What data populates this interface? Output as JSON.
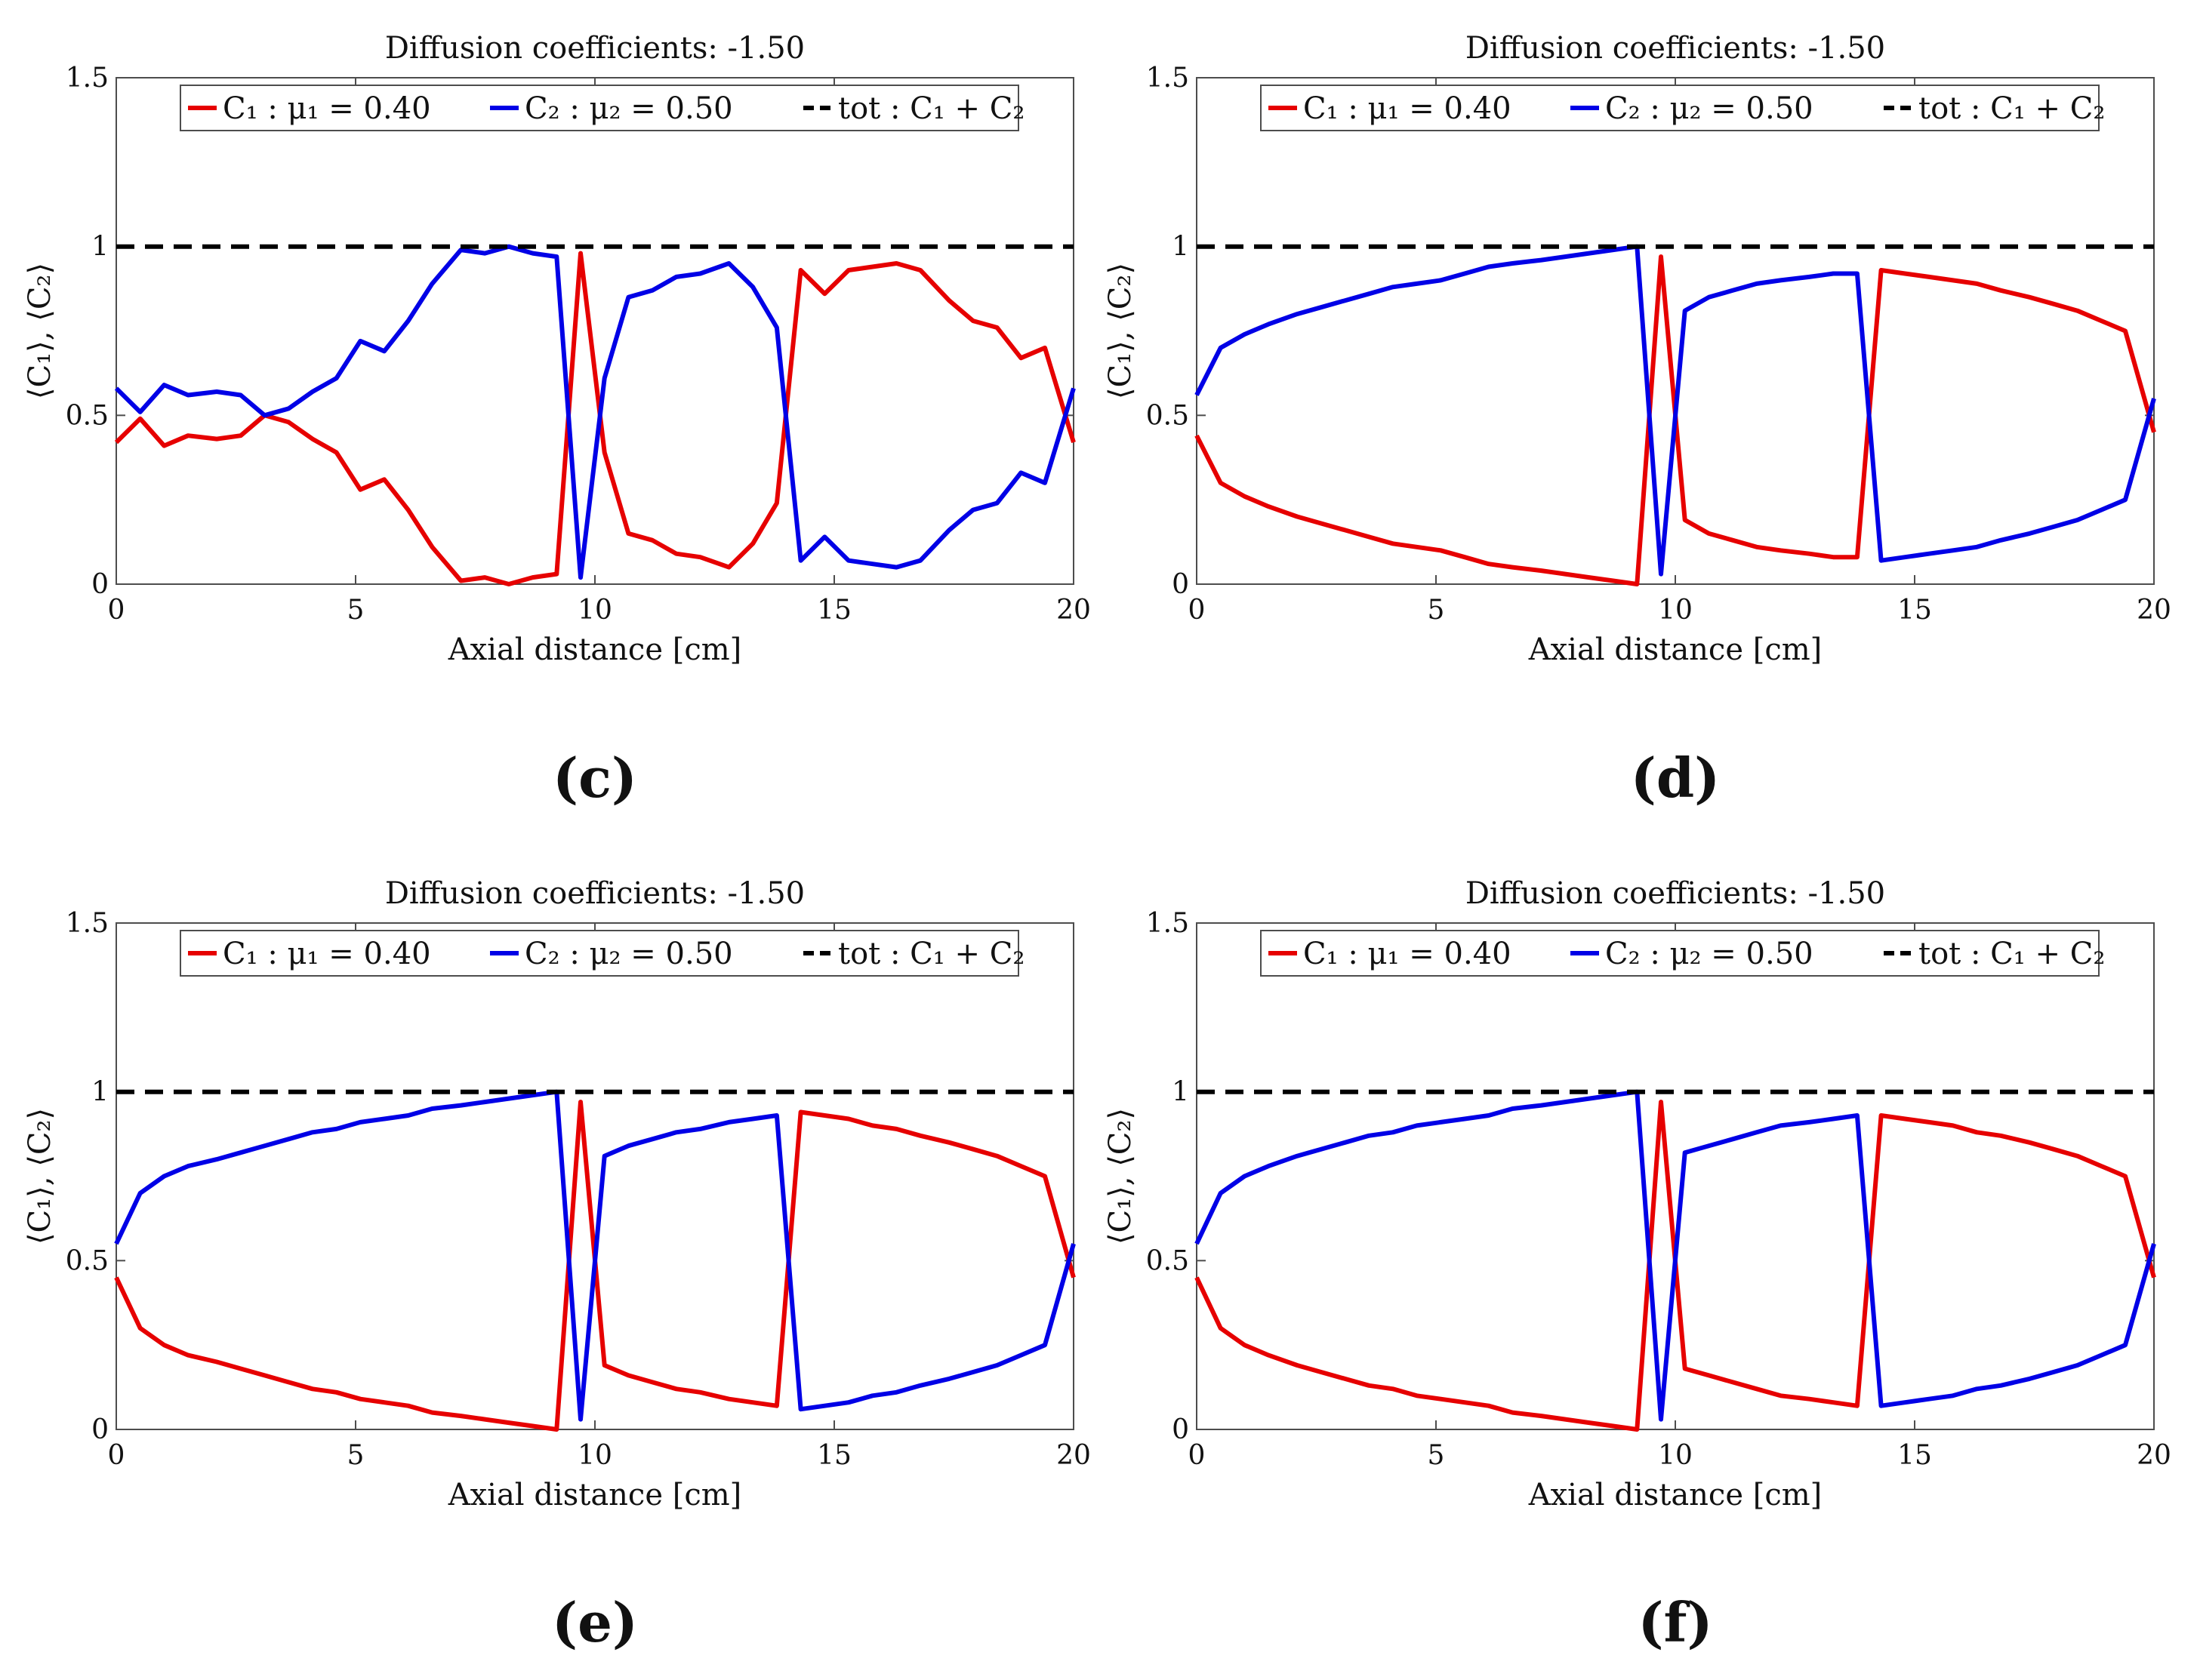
{
  "figure": {
    "panel_labels": [
      "(c)",
      "(d)",
      "(e)",
      "(f)"
    ]
  },
  "colors": {
    "c1": "#e60000",
    "c2": "#0000e6",
    "tot": "#000000",
    "axis": "#4d4d4d"
  },
  "chart_data": [
    {
      "panel": "(c)",
      "type": "line",
      "title": "Diffusion coefficients: -1.50",
      "xlabel": "Axial distance [cm]",
      "ylabel": "⟨C₁⟩, ⟨C₂⟩",
      "xlim": [
        0,
        20
      ],
      "ylim": [
        0,
        1.5
      ],
      "xticks": [
        0,
        5,
        10,
        15,
        20
      ],
      "yticks": [
        0,
        0.5,
        1,
        1.5
      ],
      "ytick_labels": [
        "0",
        "0.5",
        "1",
        "1.5"
      ],
      "legend": [
        "C₁ : μ₁ = 0.40",
        "C₂ : μ₂ = 0.50",
        "tot : C₁ + C₂"
      ],
      "legend_location": "top",
      "series": [
        {
          "name": "C₁ : μ₁ = 0.40",
          "color_key": "c1",
          "dashed": false,
          "x": [
            0,
            0.5,
            1.0,
            1.5,
            2.1,
            2.6,
            3.1,
            3.6,
            4.1,
            4.6,
            5.1,
            5.6,
            6.1,
            6.6,
            7.2,
            7.7,
            8.2,
            8.7,
            9.2,
            9.7,
            10.2,
            10.7,
            11.2,
            11.7,
            12.2,
            12.8,
            13.3,
            13.8,
            14.3,
            14.8,
            15.3,
            15.8,
            16.3,
            16.8,
            17.4,
            17.9,
            18.4,
            18.9,
            19.4,
            20
          ],
          "y": [
            0.42,
            0.49,
            0.41,
            0.44,
            0.43,
            0.44,
            0.5,
            0.48,
            0.43,
            0.39,
            0.28,
            0.31,
            0.22,
            0.11,
            0.01,
            0.02,
            0.0,
            0.02,
            0.03,
            0.98,
            0.39,
            0.15,
            0.13,
            0.09,
            0.08,
            0.05,
            0.12,
            0.24,
            0.93,
            0.86,
            0.93,
            0.94,
            0.95,
            0.93,
            0.84,
            0.78,
            0.76,
            0.67,
            0.7,
            0.42
          ]
        },
        {
          "name": "C₂ : μ₂ = 0.50",
          "color_key": "c2",
          "dashed": false,
          "x": [
            0,
            0.5,
            1.0,
            1.5,
            2.1,
            2.6,
            3.1,
            3.6,
            4.1,
            4.6,
            5.1,
            5.6,
            6.1,
            6.6,
            7.2,
            7.7,
            8.2,
            8.7,
            9.2,
            9.7,
            10.2,
            10.7,
            11.2,
            11.7,
            12.2,
            12.8,
            13.3,
            13.8,
            14.3,
            14.8,
            15.3,
            15.8,
            16.3,
            16.8,
            17.4,
            17.9,
            18.4,
            18.9,
            19.4,
            20
          ],
          "y": [
            0.58,
            0.51,
            0.59,
            0.56,
            0.57,
            0.56,
            0.5,
            0.52,
            0.57,
            0.61,
            0.72,
            0.69,
            0.78,
            0.89,
            0.99,
            0.98,
            1.0,
            0.98,
            0.97,
            0.02,
            0.61,
            0.85,
            0.87,
            0.91,
            0.92,
            0.95,
            0.88,
            0.76,
            0.07,
            0.14,
            0.07,
            0.06,
            0.05,
            0.07,
            0.16,
            0.22,
            0.24,
            0.33,
            0.3,
            0.58
          ]
        },
        {
          "name": "tot : C₁ + C₂",
          "color_key": "tot",
          "dashed": true,
          "x": [
            0,
            20
          ],
          "y": [
            1,
            1
          ]
        }
      ]
    },
    {
      "panel": "(d)",
      "type": "line",
      "title": "Diffusion coefficients: -1.50",
      "xlabel": "Axial distance [cm]",
      "ylabel": "⟨C₁⟩, ⟨C₂⟩",
      "xlim": [
        0,
        20
      ],
      "ylim": [
        0,
        1.5
      ],
      "xticks": [
        0,
        5,
        10,
        15,
        20
      ],
      "yticks": [
        0,
        0.5,
        1,
        1.5
      ],
      "ytick_labels": [
        "0",
        "0.5",
        "1",
        "1.5"
      ],
      "legend": [
        "C₁ : μ₁ = 0.40",
        "C₂ : μ₂ = 0.50",
        "tot : C₁ + C₂"
      ],
      "legend_location": "top",
      "series": [
        {
          "name": "C₁ : μ₁ = 0.40",
          "color_key": "c1",
          "dashed": false,
          "x": [
            0,
            0.5,
            1.0,
            1.5,
            2.1,
            2.6,
            3.1,
            3.6,
            4.1,
            4.6,
            5.1,
            5.6,
            6.1,
            6.6,
            7.2,
            7.7,
            8.2,
            8.7,
            9.2,
            9.7,
            10.2,
            10.7,
            11.2,
            11.7,
            12.2,
            12.8,
            13.3,
            13.8,
            14.3,
            14.8,
            15.3,
            15.8,
            16.3,
            16.8,
            17.4,
            17.9,
            18.4,
            18.9,
            19.4,
            20
          ],
          "y": [
            0.44,
            0.3,
            0.26,
            0.23,
            0.2,
            0.18,
            0.16,
            0.14,
            0.12,
            0.11,
            0.1,
            0.08,
            0.06,
            0.05,
            0.04,
            0.03,
            0.02,
            0.01,
            0.0,
            0.97,
            0.19,
            0.15,
            0.13,
            0.11,
            0.1,
            0.09,
            0.08,
            0.08,
            0.93,
            0.92,
            0.91,
            0.9,
            0.89,
            0.87,
            0.85,
            0.83,
            0.81,
            0.78,
            0.75,
            0.45
          ]
        },
        {
          "name": "C₂ : μ₂ = 0.50",
          "color_key": "c2",
          "dashed": false,
          "x": [
            0,
            0.5,
            1.0,
            1.5,
            2.1,
            2.6,
            3.1,
            3.6,
            4.1,
            4.6,
            5.1,
            5.6,
            6.1,
            6.6,
            7.2,
            7.7,
            8.2,
            8.7,
            9.2,
            9.7,
            10.2,
            10.7,
            11.2,
            11.7,
            12.2,
            12.8,
            13.3,
            13.8,
            14.3,
            14.8,
            15.3,
            15.8,
            16.3,
            16.8,
            17.4,
            17.9,
            18.4,
            18.9,
            19.4,
            20
          ],
          "y": [
            0.56,
            0.7,
            0.74,
            0.77,
            0.8,
            0.82,
            0.84,
            0.86,
            0.88,
            0.89,
            0.9,
            0.92,
            0.94,
            0.95,
            0.96,
            0.97,
            0.98,
            0.99,
            1.0,
            0.03,
            0.81,
            0.85,
            0.87,
            0.89,
            0.9,
            0.91,
            0.92,
            0.92,
            0.07,
            0.08,
            0.09,
            0.1,
            0.11,
            0.13,
            0.15,
            0.17,
            0.19,
            0.22,
            0.25,
            0.55
          ]
        },
        {
          "name": "tot : C₁ + C₂",
          "color_key": "tot",
          "dashed": true,
          "x": [
            0,
            20
          ],
          "y": [
            1,
            1
          ]
        }
      ]
    },
    {
      "panel": "(e)",
      "type": "line",
      "title": "Diffusion coefficients: -1.50",
      "xlabel": "Axial distance [cm]",
      "ylabel": "⟨C₁⟩, ⟨C₂⟩",
      "xlim": [
        0,
        20
      ],
      "ylim": [
        0,
        1.5
      ],
      "xticks": [
        0,
        5,
        10,
        15,
        20
      ],
      "yticks": [
        0,
        0.5,
        1,
        1.5
      ],
      "ytick_labels": [
        "0",
        "0.5",
        "1",
        "1.5"
      ],
      "legend": [
        "C₁ : μ₁ = 0.40",
        "C₂ : μ₂ = 0.50",
        "tot : C₁ + C₂"
      ],
      "legend_location": "top",
      "series": [
        {
          "name": "C₁ : μ₁ = 0.40",
          "color_key": "c1",
          "dashed": false,
          "x": [
            0,
            0.5,
            1.0,
            1.5,
            2.1,
            2.6,
            3.1,
            3.6,
            4.1,
            4.6,
            5.1,
            5.6,
            6.1,
            6.6,
            7.2,
            7.7,
            8.2,
            8.7,
            9.2,
            9.7,
            10.2,
            10.7,
            11.2,
            11.7,
            12.2,
            12.8,
            13.3,
            13.8,
            14.3,
            14.8,
            15.3,
            15.8,
            16.3,
            16.8,
            17.4,
            17.9,
            18.4,
            18.9,
            19.4,
            20
          ],
          "y": [
            0.45,
            0.3,
            0.25,
            0.22,
            0.2,
            0.18,
            0.16,
            0.14,
            0.12,
            0.11,
            0.09,
            0.08,
            0.07,
            0.05,
            0.04,
            0.03,
            0.02,
            0.01,
            0.0,
            0.97,
            0.19,
            0.16,
            0.14,
            0.12,
            0.11,
            0.09,
            0.08,
            0.07,
            0.94,
            0.93,
            0.92,
            0.9,
            0.89,
            0.87,
            0.85,
            0.83,
            0.81,
            0.78,
            0.75,
            0.45
          ]
        },
        {
          "name": "C₂ : μ₂ = 0.50",
          "color_key": "c2",
          "dashed": false,
          "x": [
            0,
            0.5,
            1.0,
            1.5,
            2.1,
            2.6,
            3.1,
            3.6,
            4.1,
            4.6,
            5.1,
            5.6,
            6.1,
            6.6,
            7.2,
            7.7,
            8.2,
            8.7,
            9.2,
            9.7,
            10.2,
            10.7,
            11.2,
            11.7,
            12.2,
            12.8,
            13.3,
            13.8,
            14.3,
            14.8,
            15.3,
            15.8,
            16.3,
            16.8,
            17.4,
            17.9,
            18.4,
            18.9,
            19.4,
            20
          ],
          "y": [
            0.55,
            0.7,
            0.75,
            0.78,
            0.8,
            0.82,
            0.84,
            0.86,
            0.88,
            0.89,
            0.91,
            0.92,
            0.93,
            0.95,
            0.96,
            0.97,
            0.98,
            0.99,
            1.0,
            0.03,
            0.81,
            0.84,
            0.86,
            0.88,
            0.89,
            0.91,
            0.92,
            0.93,
            0.06,
            0.07,
            0.08,
            0.1,
            0.11,
            0.13,
            0.15,
            0.17,
            0.19,
            0.22,
            0.25,
            0.55
          ]
        },
        {
          "name": "tot : C₁ + C₂",
          "color_key": "tot",
          "dashed": true,
          "x": [
            0,
            20
          ],
          "y": [
            1,
            1
          ]
        }
      ]
    },
    {
      "panel": "(f)",
      "type": "line",
      "title": "Diffusion coefficients: -1.50",
      "xlabel": "Axial distance [cm]",
      "ylabel": "⟨C₁⟩, ⟨C₂⟩",
      "xlim": [
        0,
        20
      ],
      "ylim": [
        0,
        1.5
      ],
      "xticks": [
        0,
        5,
        10,
        15,
        20
      ],
      "yticks": [
        0,
        0.5,
        1,
        1.5
      ],
      "ytick_labels": [
        "0",
        "0.5",
        "1",
        "1.5"
      ],
      "legend": [
        "C₁ : μ₁ = 0.40",
        "C₂ : μ₂ = 0.50",
        "tot : C₁ + C₂"
      ],
      "legend_location": "top",
      "series": [
        {
          "name": "C₁ : μ₁ = 0.40",
          "color_key": "c1",
          "dashed": false,
          "x": [
            0,
            0.5,
            1.0,
            1.5,
            2.1,
            2.6,
            3.1,
            3.6,
            4.1,
            4.6,
            5.1,
            5.6,
            6.1,
            6.6,
            7.2,
            7.7,
            8.2,
            8.7,
            9.2,
            9.7,
            10.2,
            10.7,
            11.2,
            11.7,
            12.2,
            12.8,
            13.3,
            13.8,
            14.3,
            14.8,
            15.3,
            15.8,
            16.3,
            16.8,
            17.4,
            17.9,
            18.4,
            18.9,
            19.4,
            20
          ],
          "y": [
            0.45,
            0.3,
            0.25,
            0.22,
            0.19,
            0.17,
            0.15,
            0.13,
            0.12,
            0.1,
            0.09,
            0.08,
            0.07,
            0.05,
            0.04,
            0.03,
            0.02,
            0.01,
            0.0,
            0.97,
            0.18,
            0.16,
            0.14,
            0.12,
            0.1,
            0.09,
            0.08,
            0.07,
            0.93,
            0.92,
            0.91,
            0.9,
            0.88,
            0.87,
            0.85,
            0.83,
            0.81,
            0.78,
            0.75,
            0.45
          ]
        },
        {
          "name": "C₂ : μ₂ = 0.50",
          "color_key": "c2",
          "dashed": false,
          "x": [
            0,
            0.5,
            1.0,
            1.5,
            2.1,
            2.6,
            3.1,
            3.6,
            4.1,
            4.6,
            5.1,
            5.6,
            6.1,
            6.6,
            7.2,
            7.7,
            8.2,
            8.7,
            9.2,
            9.7,
            10.2,
            10.7,
            11.2,
            11.7,
            12.2,
            12.8,
            13.3,
            13.8,
            14.3,
            14.8,
            15.3,
            15.8,
            16.3,
            16.8,
            17.4,
            17.9,
            18.4,
            18.9,
            19.4,
            20
          ],
          "y": [
            0.55,
            0.7,
            0.75,
            0.78,
            0.81,
            0.83,
            0.85,
            0.87,
            0.88,
            0.9,
            0.91,
            0.92,
            0.93,
            0.95,
            0.96,
            0.97,
            0.98,
            0.99,
            1.0,
            0.03,
            0.82,
            0.84,
            0.86,
            0.88,
            0.9,
            0.91,
            0.92,
            0.93,
            0.07,
            0.08,
            0.09,
            0.1,
            0.12,
            0.13,
            0.15,
            0.17,
            0.19,
            0.22,
            0.25,
            0.55
          ]
        },
        {
          "name": "tot : C₁ + C₂",
          "color_key": "tot",
          "dashed": true,
          "x": [
            0,
            20
          ],
          "y": [
            1,
            1
          ]
        }
      ]
    }
  ]
}
